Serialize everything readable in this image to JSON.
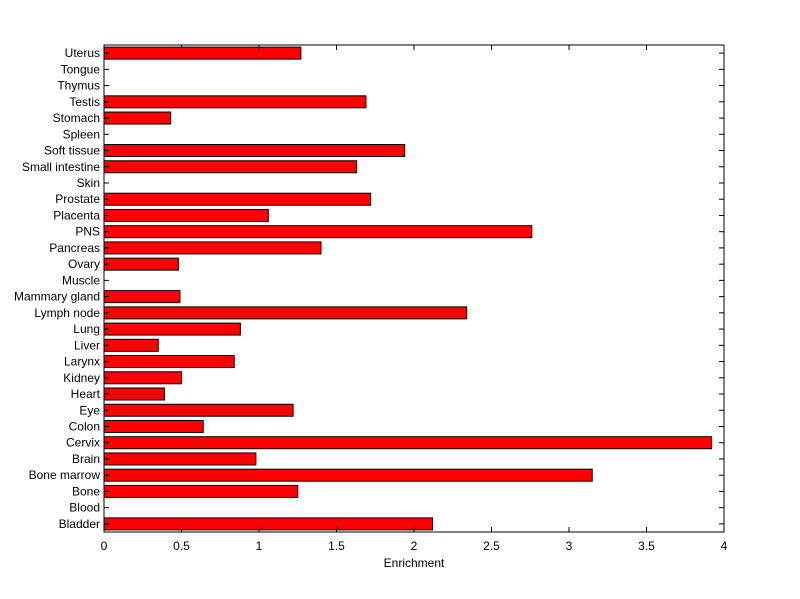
{
  "chart_data": {
    "type": "bar",
    "orientation": "horizontal",
    "xlabel": "Enrichment",
    "ylabel": "",
    "xlim": [
      0,
      4
    ],
    "xticks": [
      0,
      0.5,
      1,
      1.5,
      2,
      2.5,
      3,
      3.5,
      4
    ],
    "xtick_labels": [
      "0",
      "0.5",
      "1",
      "1.5",
      "2",
      "2.5",
      "3",
      "3.5",
      "4"
    ],
    "grid": false,
    "bar_color": "#ff0000",
    "categories": [
      "Bladder",
      "Blood",
      "Bone",
      "Bone marrow",
      "Brain",
      "Cervix",
      "Colon",
      "Eye",
      "Heart",
      "Kidney",
      "Larynx",
      "Liver",
      "Lung",
      "Lymph node",
      "Mammary gland",
      "Muscle",
      "Ovary",
      "Pancreas",
      "PNS",
      "Placenta",
      "Prostate",
      "Skin",
      "Small intestine",
      "Soft tissue",
      "Spleen",
      "Stomach",
      "Testis",
      "Thymus",
      "Tongue",
      "Uterus"
    ],
    "values": [
      2.12,
      0,
      1.25,
      3.15,
      0.98,
      3.92,
      0.64,
      1.22,
      0.39,
      0.5,
      0.84,
      0.35,
      0.88,
      2.34,
      0.49,
      0,
      0.48,
      1.4,
      2.76,
      1.06,
      1.72,
      0,
      1.63,
      1.94,
      0,
      0.43,
      1.69,
      0,
      0,
      1.27
    ]
  }
}
